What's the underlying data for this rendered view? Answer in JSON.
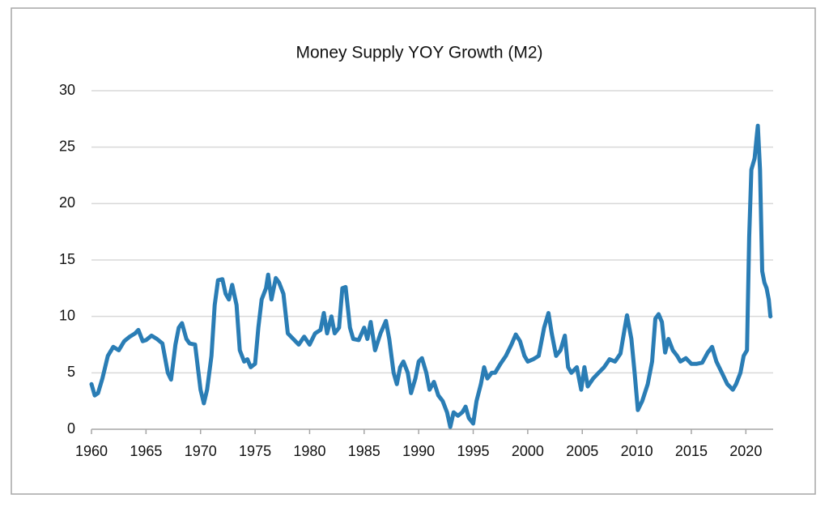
{
  "chart_data": {
    "type": "line",
    "title": "Money Supply YOY Growth (M2)",
    "x": [
      1960.0,
      1960.3,
      1960.6,
      1961,
      1961.5,
      1962,
      1962.5,
      1963,
      1963.5,
      1964,
      1964.3,
      1964.7,
      1965,
      1965.5,
      1966,
      1966.5,
      1967,
      1967.3,
      1967.7,
      1968,
      1968.3,
      1968.7,
      1969,
      1969.5,
      1970,
      1970.3,
      1970.6,
      1971,
      1971.3,
      1971.6,
      1972,
      1972.3,
      1972.6,
      1972.9,
      1973.3,
      1973.6,
      1974,
      1974.3,
      1974.6,
      1975,
      1975.3,
      1975.6,
      1976,
      1976.2,
      1976.5,
      1976.9,
      1977.2,
      1977.6,
      1978,
      1978.5,
      1979,
      1979.5,
      1980,
      1980.5,
      1981,
      1981.3,
      1981.6,
      1982,
      1982.3,
      1982.7,
      1983,
      1983.3,
      1983.7,
      1984,
      1984.5,
      1985,
      1985.3,
      1985.6,
      1986,
      1986.5,
      1987,
      1987.3,
      1987.7,
      1988,
      1988.3,
      1988.6,
      1989,
      1989.3,
      1989.7,
      1990,
      1990.3,
      1990.7,
      1991,
      1991.4,
      1991.8,
      1992.2,
      1992.6,
      1992.9,
      1993.2,
      1993.6,
      1994,
      1994.3,
      1994.6,
      1995,
      1995.3,
      1995.7,
      1996,
      1996.3,
      1996.7,
      1997,
      1997.5,
      1998,
      1998.5,
      1998.9,
      1999.3,
      1999.7,
      2000,
      2000.5,
      2001,
      2001.5,
      2001.9,
      2002.2,
      2002.6,
      2003,
      2003.4,
      2003.7,
      2004,
      2004.5,
      2004.9,
      2005.2,
      2005.5,
      2006,
      2006.5,
      2007,
      2007.5,
      2008,
      2008.5,
      2008.9,
      2009.1,
      2009.5,
      2009.8,
      2010.1,
      2010.5,
      2011,
      2011.4,
      2011.7,
      2012,
      2012.3,
      2012.6,
      2012.9,
      2013.3,
      2013.7,
      2014,
      2014.5,
      2015,
      2015.5,
      2016,
      2016.5,
      2016.9,
      2017.3,
      2017.8,
      2018.3,
      2018.8,
      2019.1,
      2019.5,
      2019.8,
      2020.1,
      2020.3,
      2020.5,
      2020.8,
      2021.0,
      2021.1,
      2021.3,
      2021.5,
      2021.7,
      2021.9,
      2022.1,
      2022.25
    ],
    "series": [
      {
        "name": "M2",
        "color": "#2a7db5",
        "values": [
          4.0,
          3.0,
          3.2,
          4.5,
          6.5,
          7.3,
          7.0,
          7.8,
          8.2,
          8.5,
          8.8,
          7.8,
          7.9,
          8.3,
          8.0,
          7.6,
          5.0,
          4.4,
          7.5,
          9.0,
          9.4,
          8.0,
          7.6,
          7.5,
          3.5,
          2.3,
          3.5,
          6.5,
          11.0,
          13.2,
          13.3,
          12.0,
          11.5,
          12.8,
          11.0,
          7.0,
          6.0,
          6.2,
          5.5,
          5.8,
          9.0,
          11.5,
          12.5,
          13.7,
          11.5,
          13.4,
          13.0,
          12.0,
          8.5,
          8.0,
          7.5,
          8.2,
          7.5,
          8.5,
          8.8,
          10.3,
          8.5,
          10.0,
          8.5,
          9.0,
          12.5,
          12.6,
          9.0,
          8.0,
          7.9,
          9.0,
          8.0,
          9.5,
          7.0,
          8.5,
          9.6,
          8.0,
          5.0,
          4.0,
          5.5,
          6.0,
          5.0,
          3.2,
          4.5,
          6.0,
          6.3,
          5.0,
          3.5,
          4.2,
          3.0,
          2.5,
          1.5,
          0.2,
          1.5,
          1.2,
          1.5,
          2.0,
          1.0,
          0.5,
          2.5,
          4.0,
          5.5,
          4.5,
          5.0,
          5.0,
          5.8,
          6.5,
          7.5,
          8.4,
          7.8,
          6.5,
          6.0,
          6.2,
          6.5,
          9.0,
          10.3,
          8.5,
          6.5,
          7.0,
          8.3,
          5.5,
          5.0,
          5.5,
          3.5,
          5.5,
          3.8,
          4.5,
          5.0,
          5.5,
          6.2,
          6.0,
          6.7,
          9.0,
          10.1,
          8.0,
          5.0,
          1.7,
          2.5,
          4.0,
          6.0,
          9.8,
          10.2,
          9.5,
          6.8,
          8.0,
          7.0,
          6.5,
          6.0,
          6.3,
          5.8,
          5.8,
          5.9,
          6.8,
          7.3,
          6.0,
          5.0,
          4.0,
          3.5,
          4.0,
          5.0,
          6.5,
          7.0,
          17.0,
          23.0,
          24.0,
          26.0,
          26.9,
          23.0,
          14.0,
          13.0,
          12.5,
          11.5,
          10.0
        ]
      }
    ],
    "xlim": [
      1960,
      2022.5
    ],
    "xticks": [
      1960,
      1965,
      1970,
      1975,
      1980,
      1985,
      1990,
      1995,
      2000,
      2005,
      2010,
      2015,
      2020
    ],
    "ylim": [
      0,
      30
    ],
    "yticks": [
      0,
      5,
      10,
      15,
      20,
      25,
      30
    ],
    "grid": true
  }
}
